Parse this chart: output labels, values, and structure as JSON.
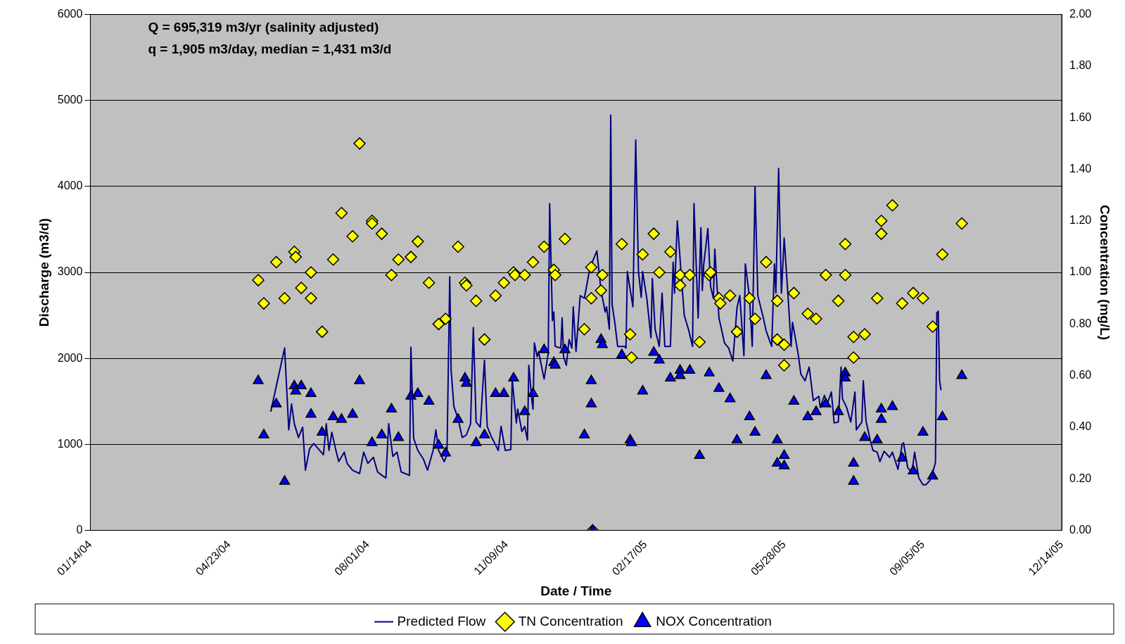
{
  "chart_data": {
    "type": "line",
    "xlabel": "Date / Time",
    "ylabel": "Discharge (m3/d)",
    "y2label": "Concentration (mg/L)",
    "annotations": [
      "Q = 695,319 m3/yr (salinity adjusted)",
      "q = 1,905 m3/day, median = 1,431 m3/d"
    ],
    "xlim": [
      "2004-01-14",
      "2005-12-14"
    ],
    "xticks": [
      {
        "value": "2004-01-14",
        "label": "01/14/04"
      },
      {
        "value": "2004-04-23",
        "label": "04/23/04"
      },
      {
        "value": "2004-08-01",
        "label": "08/01/04"
      },
      {
        "value": "2004-11-09",
        "label": "11/09/04"
      },
      {
        "value": "2005-02-17",
        "label": "02/17/05"
      },
      {
        "value": "2005-05-28",
        "label": "05/28/05"
      },
      {
        "value": "2005-09-05",
        "label": "09/05/05"
      },
      {
        "value": "2005-12-14",
        "label": "12/14/05"
      }
    ],
    "ylim": [
      0,
      6000
    ],
    "yticks": [
      0,
      1000,
      2000,
      3000,
      4000,
      5000,
      6000
    ],
    "y2lim": [
      0,
      2
    ],
    "y2ticks": [
      {
        "value": 0,
        "label": "0.00"
      },
      {
        "value": 0.2,
        "label": "0.20"
      },
      {
        "value": 0.4,
        "label": "0.40"
      },
      {
        "value": 0.6,
        "label": "0.60"
      },
      {
        "value": 0.8,
        "label": "0.80"
      },
      {
        "value": 1,
        "label": "1.00"
      },
      {
        "value": 1.2,
        "label": "1.20"
      },
      {
        "value": 1.4,
        "label": "1.40"
      },
      {
        "value": 1.6,
        "label": "1.60"
      },
      {
        "value": 1.8,
        "label": "1.80"
      },
      {
        "value": 2,
        "label": "2.00"
      }
    ],
    "grid": "y",
    "legend": "bottom",
    "series": [
      {
        "name": "Predicted Flow",
        "color": "#000080",
        "marker": "none",
        "line_style": "solid",
        "x": [
          "2004-05-23",
          "2004-06-02",
          "2004-06-05",
          "2004-06-07",
          "2004-06-09",
          "2004-06-12",
          "2004-06-15",
          "2004-06-17",
          "2004-06-20",
          "2004-06-23",
          "2004-06-30",
          "2004-07-02",
          "2004-07-04",
          "2004-07-06",
          "2004-07-09",
          "2004-07-11",
          "2004-07-15",
          "2004-07-17",
          "2004-07-21",
          "2004-07-26",
          "2004-07-29",
          "2004-08-01",
          "2004-08-05",
          "2004-08-08",
          "2004-08-12",
          "2004-08-14",
          "2004-08-16",
          "2004-08-19",
          "2004-08-22",
          "2004-08-25",
          "2004-08-31",
          "2004-09-01",
          "2004-09-03",
          "2004-09-06",
          "2004-09-10",
          "2004-09-13",
          "2004-09-17",
          "2004-09-19",
          "2004-09-21",
          "2004-09-25",
          "2004-09-27",
          "2004-09-29",
          "2004-09-30",
          "2004-10-02",
          "2004-10-05",
          "2004-10-08",
          "2004-10-11",
          "2004-10-14",
          "2004-10-16",
          "2004-10-18",
          "2004-10-21",
          "2004-10-24",
          "2004-10-26",
          "2004-10-29",
          "2004-11-03",
          "2004-11-05",
          "2004-11-08",
          "2004-11-12",
          "2004-11-13",
          "2004-11-16",
          "2004-11-17",
          "2004-11-20",
          "2004-11-22",
          "2004-11-24",
          "2004-11-25",
          "2004-11-27",
          "2004-11-28",
          "2004-11-29",
          "2004-12-01",
          "2004-12-02",
          "2004-12-06",
          "2004-12-09",
          "2004-12-10",
          "2004-12-12",
          "2004-12-13",
          "2004-12-14",
          "2004-12-18",
          "2004-12-19",
          "2004-12-20",
          "2004-12-22",
          "2004-12-24",
          "2004-12-26",
          "2004-12-27",
          "2004-12-29",
          "2005-01-01",
          "2005-01-04",
          "2005-01-08",
          "2005-01-13",
          "2005-01-16",
          "2005-01-19",
          "2005-01-20",
          "2005-01-22",
          "2005-01-23",
          "2005-01-24",
          "2005-01-26",
          "2005-01-28",
          "2005-02-02",
          "2005-02-03",
          "2005-02-04",
          "2005-02-08",
          "2005-02-10",
          "2005-02-12",
          "2005-02-14",
          "2005-02-15",
          "2005-02-18",
          "2005-02-21",
          "2005-02-22",
          "2005-02-24",
          "2005-02-27",
          "2005-03-01",
          "2005-03-03",
          "2005-03-07",
          "2005-03-09",
          "2005-03-10",
          "2005-03-12",
          "2005-03-15",
          "2005-03-17",
          "2005-03-20",
          "2005-03-23",
          "2005-03-24",
          "2005-03-27",
          "2005-03-29",
          "2005-03-30",
          "2005-03-31",
          "2005-04-03",
          "2005-04-05",
          "2005-04-07",
          "2005-04-08",
          "2005-04-11",
          "2005-04-15",
          "2005-04-18",
          "2005-04-21",
          "2005-04-24",
          "2005-04-26",
          "2005-04-29",
          "2005-04-30",
          "2005-05-03",
          "2005-05-05",
          "2005-05-07",
          "2005-05-09",
          "2005-05-13",
          "2005-05-15",
          "2005-05-19",
          "2005-05-21",
          "2005-05-22",
          "2005-05-24",
          "2005-05-26",
          "2005-05-28",
          "2005-05-31",
          "2005-06-02",
          "2005-06-03",
          "2005-06-07",
          "2005-06-09",
          "2005-06-12",
          "2005-06-15",
          "2005-06-18",
          "2005-06-22",
          "2005-06-23",
          "2005-06-26",
          "2005-06-28",
          "2005-07-01",
          "2005-07-03",
          "2005-07-06",
          "2005-07-08",
          "2005-07-09",
          "2005-07-12",
          "2005-07-15",
          "2005-07-18",
          "2005-07-19",
          "2005-07-23",
          "2005-07-24",
          "2005-07-26",
          "2005-07-29",
          "2005-07-31",
          "2005-08-03",
          "2005-08-05",
          "2005-08-08",
          "2005-08-12",
          "2005-08-14",
          "2005-08-18",
          "2005-08-21",
          "2005-08-22",
          "2005-08-25",
          "2005-08-28",
          "2005-08-30",
          "2005-09-02",
          "2005-09-05",
          "2005-09-07",
          "2005-09-10",
          "2005-09-12",
          "2005-09-14",
          "2005-09-15",
          "2005-09-16",
          "2005-09-17",
          "2005-09-18"
        ],
        "values": [
          1380,
          2120,
          1170,
          1470,
          1240,
          1080,
          1200,
          700,
          950,
          1010,
          880,
          1240,
          930,
          1140,
          930,
          800,
          910,
          780,
          700,
          660,
          910,
          780,
          850,
          680,
          630,
          610,
          1240,
          860,
          910,
          680,
          640,
          2130,
          1070,
          930,
          830,
          700,
          930,
          1170,
          930,
          800,
          880,
          2950,
          1860,
          1440,
          1300,
          1080,
          1110,
          1240,
          2360,
          1260,
          1200,
          1980,
          1210,
          1090,
          930,
          1210,
          930,
          940,
          1760,
          1250,
          1410,
          1150,
          1210,
          1050,
          1920,
          1540,
          1410,
          2180,
          2020,
          2080,
          1760,
          2060,
          3800,
          2440,
          2540,
          2140,
          2120,
          2470,
          2020,
          1920,
          2220,
          2120,
          2600,
          2080,
          2730,
          2700,
          3050,
          3250,
          2790,
          2540,
          2600,
          2340,
          4830,
          2630,
          2410,
          2140,
          2140,
          2120,
          3010,
          2600,
          4540,
          3010,
          2710,
          3010,
          2700,
          2240,
          2930,
          2340,
          2140,
          2760,
          2140,
          2140,
          3120,
          2760,
          3600,
          2930,
          2500,
          2340,
          2140,
          3800,
          2470,
          3520,
          2790,
          3090,
          3510,
          2830,
          2700,
          3270,
          2470,
          2180,
          2120,
          1970,
          2590,
          2730,
          2030,
          3100,
          2710,
          2140,
          4000,
          2730,
          2470,
          2320,
          2140,
          3100,
          2760,
          4210,
          2760,
          3400,
          2670,
          2140,
          2420,
          2060,
          1820,
          1740,
          1900,
          1510,
          1560,
          1430,
          1570,
          1470,
          1610,
          1250,
          1260,
          1900,
          1530,
          1430,
          1260,
          1610,
          1170,
          1260,
          1740,
          1270,
          1050,
          930,
          910,
          800,
          920,
          850,
          910,
          710,
          1000,
          1020,
          730,
          670,
          910,
          610,
          530,
          530,
          580,
          670,
          790,
          2530,
          2550,
          1740,
          1630
        ]
      },
      {
        "name": "TN Concentration",
        "type": "scatter",
        "axis": "y2",
        "color": "#ffff00",
        "marker": "diamond",
        "x": [
          "2004-05-14",
          "2004-05-18",
          "2004-05-27",
          "2004-06-02",
          "2004-06-09",
          "2004-06-10",
          "2004-06-14",
          "2004-06-21",
          "2004-06-21",
          "2004-06-29",
          "2004-07-07",
          "2004-07-13",
          "2004-07-21",
          "2004-07-26",
          "2004-08-04",
          "2004-08-04",
          "2004-08-11",
          "2004-08-18",
          "2004-08-23",
          "2004-09-01",
          "2004-09-06",
          "2004-09-14",
          "2004-09-21",
          "2004-09-26",
          "2004-10-05",
          "2004-10-10",
          "2004-10-11",
          "2004-10-18",
          "2004-10-24",
          "2004-11-01",
          "2004-11-07",
          "2004-11-14",
          "2004-11-15",
          "2004-11-22",
          "2004-11-28",
          "2004-12-06",
          "2004-12-13",
          "2004-12-14",
          "2004-12-21",
          "2005-01-04",
          "2005-01-09",
          "2005-01-09",
          "2005-01-10",
          "2005-01-16",
          "2005-01-17",
          "2005-01-31",
          "2005-02-06",
          "2005-02-07",
          "2005-02-15",
          "2005-02-23",
          "2005-02-27",
          "2005-03-07",
          "2005-03-14",
          "2005-03-14",
          "2005-03-21",
          "2005-03-28",
          "2005-04-04",
          "2005-04-05",
          "2005-04-11",
          "2005-04-12",
          "2005-04-19",
          "2005-04-24",
          "2005-05-03",
          "2005-05-07",
          "2005-05-15",
          "2005-05-23",
          "2005-05-23",
          "2005-05-28",
          "2005-05-28",
          "2005-06-04",
          "2005-06-14",
          "2005-06-20",
          "2005-06-27",
          "2005-07-06",
          "2005-07-11",
          "2005-07-11",
          "2005-07-17",
          "2005-07-17",
          "2005-07-25",
          "2005-08-03",
          "2005-08-06",
          "2005-08-06",
          "2005-08-14",
          "2005-08-21",
          "2005-08-29",
          "2005-09-05",
          "2005-09-12",
          "2005-09-19",
          "2005-10-03"
        ],
        "values": [
          0.97,
          0.88,
          1.04,
          0.9,
          1.08,
          1.06,
          0.94,
          1.0,
          0.9,
          0.77,
          1.05,
          1.23,
          1.14,
          1.5,
          1.2,
          1.19,
          1.15,
          0.99,
          1.05,
          1.06,
          1.12,
          0.96,
          0.8,
          0.82,
          1.1,
          0.96,
          0.95,
          0.89,
          0.74,
          0.91,
          0.96,
          1.0,
          0.99,
          0.99,
          1.04,
          1.1,
          1.01,
          0.99,
          1.13,
          0.78,
          1.02,
          0.9,
          0,
          0.93,
          0.99,
          1.11,
          0.76,
          0.67,
          1.07,
          1.15,
          1.0,
          1.08,
          0.99,
          0.95,
          0.99,
          0.73,
          0.99,
          1.0,
          0.9,
          0.88,
          0.91,
          0.77,
          0.9,
          0.82,
          1.04,
          0.89,
          0.74,
          0.72,
          0.64,
          0.92,
          0.84,
          0.82,
          0.99,
          0.89,
          1.11,
          0.99,
          0.75,
          0.67,
          0.76,
          0.9,
          1.15,
          1.2,
          1.26,
          0.88,
          0.92,
          0.9,
          0.79,
          1.07,
          1.19
        ]
      },
      {
        "name": "NOX Concentration",
        "type": "scatter",
        "axis": "y2",
        "color": "#0000ff",
        "marker": "triangle",
        "x": [
          "2004-05-14",
          "2004-05-18",
          "2004-05-27",
          "2004-06-02",
          "2004-06-09",
          "2004-06-10",
          "2004-06-14",
          "2004-06-21",
          "2004-06-21",
          "2004-06-29",
          "2004-07-07",
          "2004-07-13",
          "2004-07-21",
          "2004-07-26",
          "2004-08-04",
          "2004-08-11",
          "2004-08-18",
          "2004-08-23",
          "2004-09-01",
          "2004-09-06",
          "2004-09-14",
          "2004-09-21",
          "2004-09-26",
          "2004-10-05",
          "2004-10-10",
          "2004-10-11",
          "2004-10-18",
          "2004-10-24",
          "2004-11-01",
          "2004-11-07",
          "2004-11-14",
          "2004-11-22",
          "2004-11-28",
          "2004-12-06",
          "2004-12-13",
          "2004-12-14",
          "2004-12-21",
          "2005-01-04",
          "2005-01-09",
          "2005-01-09",
          "2005-01-10",
          "2005-01-16",
          "2005-01-17",
          "2005-01-31",
          "2005-02-06",
          "2005-02-07",
          "2005-02-15",
          "2005-02-23",
          "2005-02-27",
          "2005-03-07",
          "2005-03-14",
          "2005-03-14",
          "2005-03-21",
          "2005-03-28",
          "2005-04-04",
          "2005-04-11",
          "2005-04-19",
          "2005-04-24",
          "2005-05-03",
          "2005-05-07",
          "2005-05-15",
          "2005-05-23",
          "2005-05-23",
          "2005-05-28",
          "2005-05-28",
          "2005-06-04",
          "2005-06-14",
          "2005-06-20",
          "2005-06-27",
          "2005-07-06",
          "2005-07-11",
          "2005-07-11",
          "2005-07-17",
          "2005-07-17",
          "2005-07-25",
          "2005-08-03",
          "2005-08-06",
          "2005-08-06",
          "2005-08-14",
          "2005-08-21",
          "2005-08-29",
          "2005-09-05",
          "2005-09-12",
          "2005-09-19",
          "2005-10-03"
        ],
        "values": [
          0.58,
          0.37,
          0.49,
          0.19,
          0.56,
          0.54,
          0.56,
          0.53,
          0.45,
          0.38,
          0.44,
          0.43,
          0.45,
          0.58,
          0.34,
          0.37,
          0.47,
          0.36,
          0.52,
          0.53,
          0.5,
          0.33,
          0.3,
          0.43,
          0.59,
          0.57,
          0.34,
          0.37,
          0.53,
          0.53,
          0.59,
          0.46,
          0.53,
          0.7,
          0.65,
          0.64,
          0.7,
          0.37,
          0.58,
          0.49,
          0,
          0.74,
          0.72,
          0.68,
          0.35,
          0.34,
          0.54,
          0.69,
          0.66,
          0.59,
          0.62,
          0.6,
          0.62,
          0.29,
          0.61,
          0.55,
          0.51,
          0.35,
          0.44,
          0.38,
          0.6,
          0.35,
          0.26,
          0.29,
          0.25,
          0.5,
          0.44,
          0.46,
          0.49,
          0.46,
          0.61,
          0.59,
          0.26,
          0.19,
          0.36,
          0.35,
          0.47,
          0.43,
          0.48,
          0.28,
          0.23,
          0.38,
          0.21,
          0.44,
          0.6
        ]
      }
    ]
  }
}
